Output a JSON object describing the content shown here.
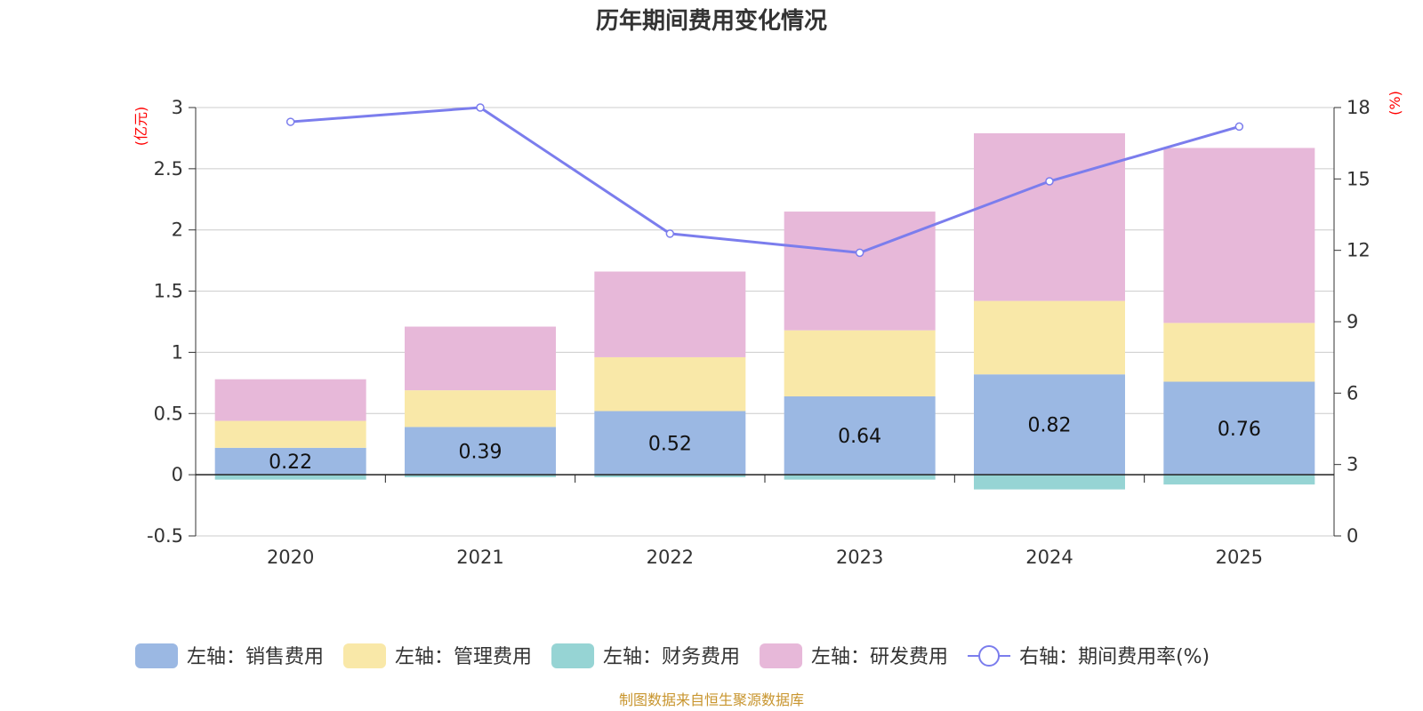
{
  "chart_data": {
    "type": "bar",
    "stacked": true,
    "title": "历年期间费用变化情况",
    "categories": [
      "2020",
      "2021",
      "2022",
      "2023",
      "2024",
      "2025"
    ],
    "left_axis": {
      "unit": "(亿元)",
      "ylim": [
        -0.5,
        3
      ],
      "ticks": [
        "-0.5",
        "0",
        "0.5",
        "1",
        "1.5",
        "2",
        "2.5",
        "3"
      ]
    },
    "right_axis": {
      "unit": "(%)",
      "ylim": [
        0,
        18
      ],
      "ticks": [
        "0",
        "3",
        "6",
        "9",
        "12",
        "15",
        "18"
      ]
    },
    "series": [
      {
        "name": "左轴：销售费用",
        "axis": "left",
        "color": "#9bb8e3",
        "values": [
          0.22,
          0.39,
          0.52,
          0.64,
          0.82,
          0.76
        ],
        "labels": [
          "0.22",
          "0.39",
          "0.52",
          "0.64",
          "0.82",
          "0.76"
        ]
      },
      {
        "name": "左轴：管理费用",
        "axis": "left",
        "color": "#f9e8a8",
        "values": [
          0.22,
          0.3,
          0.44,
          0.54,
          0.6,
          0.48
        ]
      },
      {
        "name": "左轴：财务费用",
        "axis": "left",
        "color": "#96d4d4",
        "values": [
          -0.04,
          -0.02,
          -0.02,
          -0.04,
          -0.12,
          -0.08
        ]
      },
      {
        "name": "左轴：研发费用",
        "axis": "left",
        "color": "#e7b8d9",
        "values": [
          0.34,
          0.52,
          0.7,
          0.97,
          1.37,
          1.43
        ]
      },
      {
        "name": "右轴：期间费用率(%)",
        "axis": "right",
        "type": "line",
        "color": "#7b7ded",
        "values": [
          17.4,
          18.0,
          12.7,
          11.9,
          14.9,
          17.2
        ]
      }
    ],
    "legend_position": "bottom",
    "grid": true
  },
  "source_text": "制图数据来自恒生聚源数据库"
}
